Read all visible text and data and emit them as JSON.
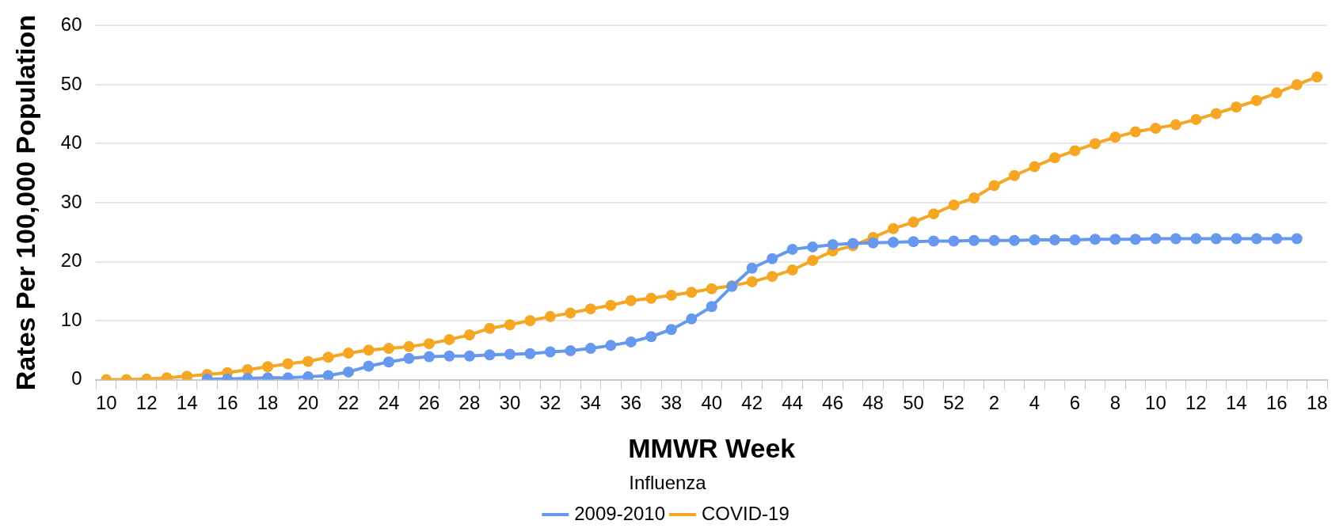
{
  "chart_data": {
    "type": "line",
    "xlabel": "MMWR Week",
    "ylabel": "Rates Per 100,000 Population",
    "legend_title": "Influenza",
    "categories": [
      "10",
      null,
      "12",
      null,
      "14",
      null,
      "16",
      null,
      "18",
      null,
      "20",
      null,
      "22",
      null,
      "24",
      null,
      "26",
      null,
      "28",
      null,
      "30",
      null,
      "32",
      null,
      "34",
      null,
      "36",
      null,
      "38",
      null,
      "40",
      null,
      "42",
      null,
      "44",
      null,
      "46",
      null,
      "48",
      null,
      "50",
      null,
      "52",
      null,
      "2",
      null,
      "4",
      null,
      "6",
      null,
      "8",
      null,
      "10",
      null,
      "12",
      null,
      "14",
      null,
      "16",
      null,
      "18"
    ],
    "series": [
      {
        "name": "2009-2010",
        "color": "#6699ee",
        "values": [
          null,
          null,
          null,
          null,
          null,
          0.1,
          0.1,
          0.2,
          0.3,
          0.3,
          0.5,
          0.7,
          1.3,
          2.3,
          3.0,
          3.6,
          3.9,
          4.0,
          4.0,
          4.2,
          4.3,
          4.4,
          4.7,
          4.9,
          5.3,
          5.8,
          6.4,
          7.3,
          8.5,
          10.3,
          12.4,
          15.8,
          18.9,
          20.5,
          22.1,
          22.5,
          22.9,
          23.1,
          23.2,
          23.3,
          23.4,
          23.5,
          23.5,
          23.6,
          23.6,
          23.6,
          23.7,
          23.7,
          23.7,
          23.8,
          23.8,
          23.8,
          23.9,
          23.9,
          23.9,
          23.9,
          23.9,
          23.9,
          23.9,
          23.9,
          null
        ]
      },
      {
        "name": "COVID-19",
        "color": "#f5a623",
        "values": [
          0,
          0,
          0.1,
          0.3,
          0.6,
          0.9,
          1.2,
          1.7,
          2.2,
          2.7,
          3.1,
          3.8,
          4.5,
          5.0,
          5.3,
          5.6,
          6.1,
          6.8,
          7.6,
          8.7,
          9.3,
          10.0,
          10.7,
          11.3,
          12.0,
          12.6,
          13.4,
          13.8,
          14.3,
          14.8,
          15.4,
          15.9,
          16.6,
          17.5,
          18.6,
          20.2,
          21.8,
          22.7,
          24.1,
          25.6,
          26.7,
          28.1,
          29.6,
          30.8,
          32.9,
          34.6,
          36.1,
          37.6,
          38.8,
          40.0,
          41.1,
          42.0,
          42.6,
          43.2,
          44.1,
          45.1,
          46.2,
          47.3,
          48.6,
          50.0,
          51.3
        ]
      }
    ],
    "ylim": [
      0,
      60
    ],
    "yticks": [
      0,
      10,
      20,
      30,
      40,
      50,
      60
    ],
    "grid": "y",
    "legend": "bottom",
    "marker": "circle",
    "line_style": "solid"
  }
}
